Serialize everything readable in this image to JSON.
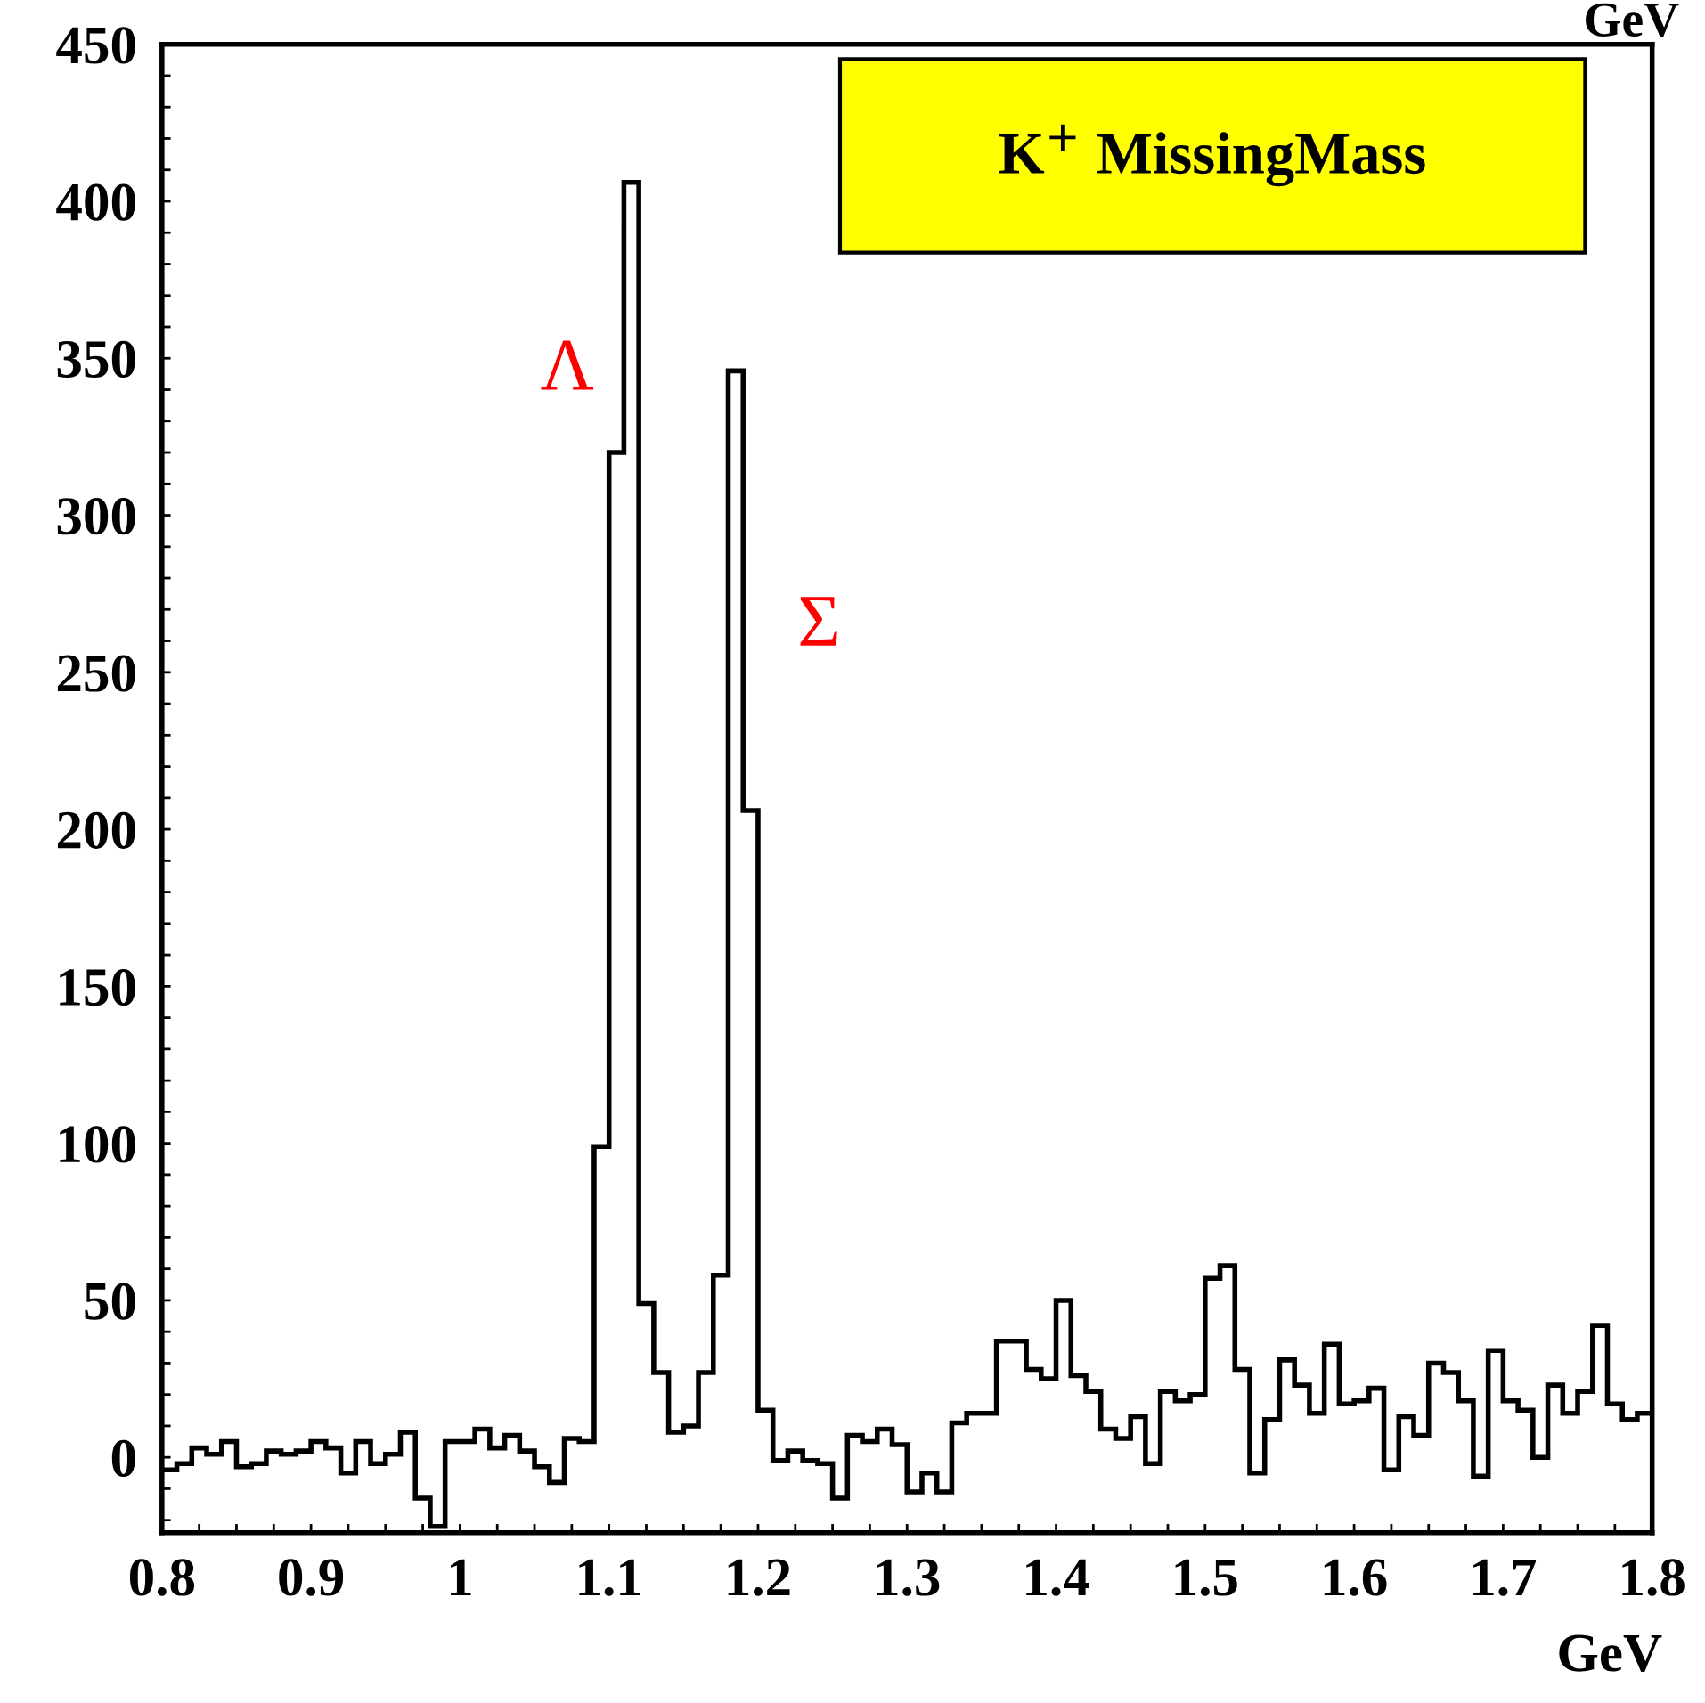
{
  "chart_data": {
    "type": "histogram",
    "title": "K$^{+}$ MissingMass",
    "xlabel": "GeV",
    "bins": [
      0.8,
      0.81,
      0.82,
      0.83,
      0.84,
      0.85,
      0.86,
      0.87,
      0.88,
      0.89,
      0.9,
      0.91,
      0.92,
      0.93,
      0.94,
      0.95,
      0.96,
      0.97,
      0.98,
      0.99,
      1.0,
      1.01,
      1.02,
      1.03,
      1.04,
      1.05,
      1.06,
      1.07,
      1.08,
      1.09,
      1.1,
      1.11,
      1.12,
      1.13,
      1.14,
      1.15,
      1.16,
      1.17,
      1.18,
      1.19,
      1.2,
      1.21,
      1.22,
      1.23,
      1.24,
      1.25,
      1.26,
      1.27,
      1.28,
      1.29,
      1.3,
      1.31,
      1.32,
      1.33,
      1.34,
      1.35,
      1.36,
      1.37,
      1.38,
      1.39,
      1.4,
      1.41,
      1.42,
      1.43,
      1.44,
      1.45,
      1.46,
      1.47,
      1.48,
      1.49,
      1.5,
      1.51,
      1.52,
      1.53,
      1.54,
      1.55,
      1.56,
      1.57,
      1.58,
      1.59,
      1.6,
      1.61,
      1.62,
      1.63,
      1.64,
      1.65,
      1.66,
      1.67,
      1.68,
      1.69,
      1.7,
      1.71,
      1.72,
      1.73,
      1.74,
      1.75,
      1.76,
      1.77,
      1.78,
      1.79,
      1.8
    ],
    "values": [
      -4,
      -2,
      3,
      1,
      5,
      -3,
      -2,
      2,
      1,
      2,
      5,
      3,
      -5,
      5,
      -2,
      1,
      8,
      -13,
      -22,
      5,
      5,
      9,
      3,
      7,
      2,
      -3,
      -8,
      6,
      5,
      99,
      320,
      406,
      49,
      27,
      8,
      10,
      27,
      58,
      346,
      206,
      15,
      -1,
      2,
      -1,
      -2,
      -13,
      7,
      5,
      9,
      4,
      -11,
      -5,
      -11,
      11,
      14,
      14,
      37,
      37,
      28,
      25,
      50,
      26,
      21,
      9,
      6,
      13,
      -2,
      21,
      18,
      20,
      57,
      61,
      28,
      -5,
      12,
      31,
      23,
      14,
      36,
      17,
      18,
      22,
      -4,
      13,
      7,
      30,
      27,
      18,
      -6,
      34,
      18,
      15,
      0,
      23,
      14,
      21,
      42,
      17,
      12,
      14
    ],
    "color": "#000000",
    "xlim": [
      0.8,
      1.8
    ],
    "ylim": [
      -24,
      450
    ],
    "xticks": [
      0.8,
      {
        "value": 0.825,
        "label": null
      },
      {
        "value": 0.85,
        "label": null
      },
      {
        "value": 0.875,
        "label": null
      },
      0.9,
      {
        "value": 0.925,
        "label": null
      },
      {
        "value": 0.95,
        "label": null
      },
      {
        "value": 0.975,
        "label": null
      },
      1,
      {
        "value": 1.025,
        "label": null
      },
      {
        "value": 1.05,
        "label": null
      },
      {
        "value": 1.075,
        "label": null
      },
      1.1,
      {
        "value": 1.125,
        "label": null
      },
      {
        "value": 1.15,
        "label": null
      },
      {
        "value": 1.175,
        "label": null
      },
      1.2,
      {
        "value": 1.225,
        "label": null
      },
      {
        "value": 1.25,
        "label": null
      },
      {
        "value": 1.275,
        "label": null
      },
      1.3,
      {
        "value": 1.325,
        "label": null
      },
      {
        "value": 1.35,
        "label": null
      },
      {
        "value": 1.375,
        "label": null
      },
      1.4,
      {
        "value": 1.425,
        "label": null
      },
      {
        "value": 1.45,
        "label": null
      },
      {
        "value": 1.475,
        "label": null
      },
      1.5,
      {
        "value": 1.525,
        "label": null
      },
      {
        "value": 1.55,
        "label": null
      },
      {
        "value": 1.575,
        "label": null
      },
      1.6,
      {
        "value": 1.625,
        "label": null
      },
      {
        "value": 1.65,
        "label": null
      },
      {
        "value": 1.675,
        "label": null
      },
      1.7,
      {
        "value": 1.725,
        "label": null
      },
      {
        "value": 1.75,
        "label": null
      },
      {
        "value": 1.775,
        "label": null
      },
      1.8
    ],
    "yticks": [
      {
        "value": -20,
        "label": null
      },
      {
        "value": -10,
        "label": null
      },
      0,
      {
        "value": 10,
        "label": null
      },
      {
        "value": 20,
        "label": null
      },
      {
        "value": 30,
        "label": null
      },
      {
        "value": 40,
        "label": null
      },
      50,
      {
        "value": 60,
        "label": null
      },
      {
        "value": 70,
        "label": null
      },
      {
        "value": 80,
        "label": null
      },
      {
        "value": 90,
        "label": null
      },
      100,
      {
        "value": 110,
        "label": null
      },
      {
        "value": 120,
        "label": null
      },
      {
        "value": 130,
        "label": null
      },
      {
        "value": 140,
        "label": null
      },
      150,
      {
        "value": 160,
        "label": null
      },
      {
        "value": 170,
        "label": null
      },
      {
        "value": 180,
        "label": null
      },
      {
        "value": 190,
        "label": null
      },
      200,
      {
        "value": 210,
        "label": null
      },
      {
        "value": 220,
        "label": null
      },
      {
        "value": 230,
        "label": null
      },
      {
        "value": 240,
        "label": null
      },
      250,
      {
        "value": 260,
        "label": null
      },
      {
        "value": 270,
        "label": null
      },
      {
        "value": 280,
        "label": null
      },
      {
        "value": 290,
        "label": null
      },
      300,
      {
        "value": 310,
        "label": null
      },
      {
        "value": 320,
        "label": null
      },
      {
        "value": 330,
        "label": null
      },
      {
        "value": 340,
        "label": null
      },
      350,
      {
        "value": 360,
        "label": null
      },
      {
        "value": 370,
        "label": null
      },
      {
        "value": 380,
        "label": null
      },
      {
        "value": 390,
        "label": null
      },
      400,
      {
        "value": 410,
        "label": null
      },
      {
        "value": 420,
        "label": null
      },
      {
        "value": 430,
        "label": null
      },
      {
        "value": 440,
        "label": null
      },
      450
    ],
    "grid": false,
    "legend": false,
    "annotations": [
      "Λ",
      "Σ",
      "GeV"
    ]
  }
}
